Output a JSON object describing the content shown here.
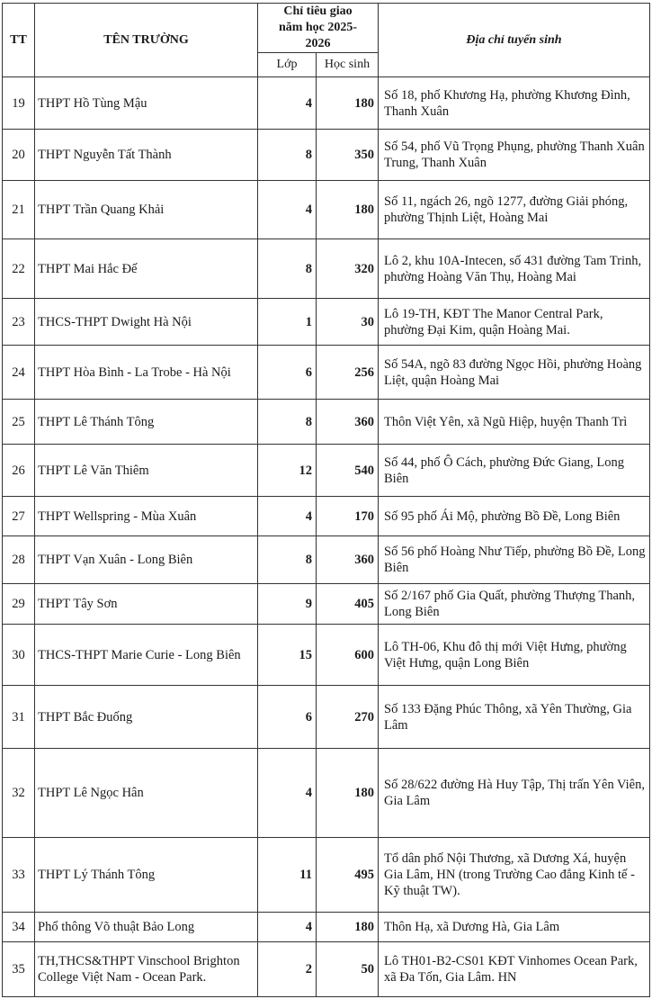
{
  "header": {
    "tt": "TT",
    "school_name": "TÊN TRƯỜNG",
    "quota": "Chỉ tiêu giao năm học 2025-2026",
    "classes": "Lớp",
    "students": "Học sinh",
    "address": "Địa chỉ tuyển sinh"
  },
  "rows": [
    {
      "tt": "19",
      "name": "THPT Hồ Tùng Mậu",
      "classes": "4",
      "students": "180",
      "address": "Số 18, phố Khương Hạ, phường Khương Đình, Thanh Xuân"
    },
    {
      "tt": "20",
      "name": "THPT Nguyễn Tất Thành",
      "classes": "8",
      "students": "350",
      "address": "Số 54, phố Vũ Trọng Phụng, phường Thanh Xuân Trung, Thanh Xuân"
    },
    {
      "tt": "21",
      "name": "THPT Trần Quang Khải",
      "classes": "4",
      "students": "180",
      "address": "Số 11, ngách 26, ngõ 1277, đường Giải phóng, phường Thịnh Liệt, Hoàng Mai"
    },
    {
      "tt": "22",
      "name": "THPT Mai Hắc Đế",
      "classes": "8",
      "students": "320",
      "address": "Lô 2, khu 10A-Intecen, số 431 đường Tam Trinh, phường Hoàng Văn Thụ, Hoàng Mai"
    },
    {
      "tt": "23",
      "name": "THCS-THPT Dwight Hà Nội",
      "classes": "1",
      "students": "30",
      "address": "Lô 19-TH, KĐT The Manor Central Park, phường Đại Kim, quận Hoàng Mai."
    },
    {
      "tt": "24",
      "name": "THPT Hòa Bình - La Trobe - Hà Nội",
      "classes": "6",
      "students": "256",
      "address": "Số 54A, ngõ 83 đường Ngọc Hồi, phường Hoàng Liệt, quận Hoàng Mai"
    },
    {
      "tt": "25",
      "name": "THPT Lê Thánh Tông",
      "classes": "8",
      "students": "360",
      "address": "Thôn Việt Yên, xã Ngũ Hiệp, huyện Thanh Trì"
    },
    {
      "tt": "26",
      "name": "THPT Lê Văn Thiêm",
      "classes": "12",
      "students": "540",
      "address": "Số 44, phố Ô Cách, phường Đức Giang, Long Biên"
    },
    {
      "tt": "27",
      "name": "THPT Wellspring - Mùa Xuân",
      "classes": "4",
      "students": "170",
      "address": "Số 95 phố Ái Mộ, phường Bồ Đề, Long Biên"
    },
    {
      "tt": "28",
      "name": "THPT Vạn Xuân - Long Biên",
      "classes": "8",
      "students": "360",
      "address": "Số 56 phố Hoàng Như Tiếp, phường Bồ Đề, Long Biên"
    },
    {
      "tt": "29",
      "name": "THPT Tây Sơn",
      "classes": "9",
      "students": "405",
      "address": "Số 2/167 phố Gia Quất, phường Thượng Thanh, Long Biên"
    },
    {
      "tt": "30",
      "name": "THCS-THPT Marie Curie - Long Biên",
      "classes": "15",
      "students": "600",
      "address": "Lô TH-06, Khu đô thị mới Việt Hưng, phường Việt Hưng, quận Long Biên"
    },
    {
      "tt": "31",
      "name": "THPT Bắc Đuống",
      "classes": "6",
      "students": "270",
      "address": "Số 133 Đặng Phúc Thông, xã Yên Thường, Gia Lâm"
    },
    {
      "tt": "32",
      "name": "THPT Lê Ngọc Hân",
      "classes": "4",
      "students": "180",
      "address": "Số 28/622 đường Hà Huy Tập, Thị trấn Yên Viên, Gia Lâm"
    },
    {
      "tt": "33",
      "name": "THPT  Lý Thánh Tông",
      "classes": "11",
      "students": "495",
      "address": "Tổ dân phố Nội Thương, xã Dương Xá, huyện Gia Lâm, HN (trong Trường Cao đẳng Kinh tế -  Kỹ thuật TW)."
    },
    {
      "tt": "34",
      "name": "Phổ thông Võ thuật Bảo Long",
      "classes": "4",
      "students": "180",
      "address": "Thôn Hạ, xã Dương Hà, Gia Lâm"
    },
    {
      "tt": "35",
      "name": "TH,THCS&THPT Vinschool Brighton College Việt Nam - Ocean Park.",
      "classes": "2",
      "students": "50",
      "address": "Lô TH01-B2-CS01 KĐT Vinhomes Ocean Park, xã Đa Tốn, Gia Lâm. HN"
    }
  ]
}
